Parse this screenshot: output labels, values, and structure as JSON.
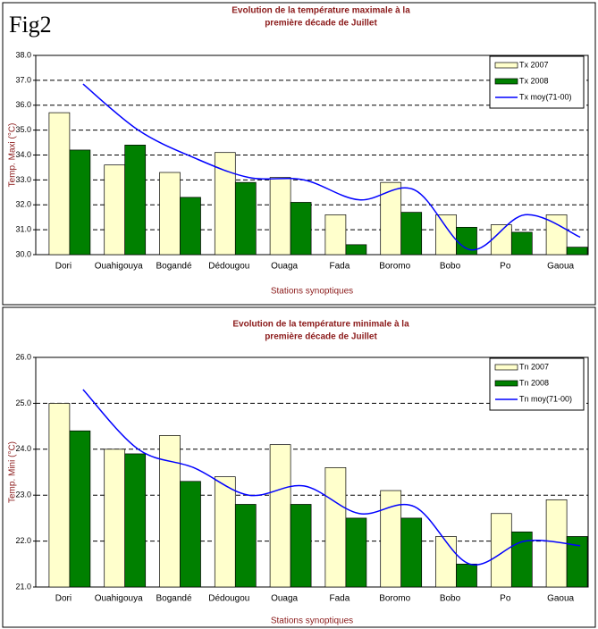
{
  "figure_label": "Fig2",
  "chart_data": [
    {
      "type": "bar",
      "title": [
        "Evolution de la température maximale à la",
        "première décade de Juillet"
      ],
      "x_label": "Stations synoptiques",
      "y_label": "Temp. Maxi (°C)",
      "categories": [
        "Dori",
        "Ouahigouya",
        "Bogandé",
        "Dédougou",
        "Ouaga",
        "Fada",
        "Boromo",
        "Bobo",
        "Po",
        "Gaoua"
      ],
      "series": [
        {
          "name": "Tx 2007",
          "type": "bar",
          "color": "#ffffcc",
          "values": [
            35.7,
            33.6,
            33.3,
            34.1,
            33.1,
            31.6,
            32.9,
            31.6,
            31.2,
            31.6
          ]
        },
        {
          "name": "Tx 2008",
          "type": "bar",
          "color": "#008000",
          "values": [
            34.2,
            34.4,
            32.3,
            32.9,
            32.1,
            30.4,
            31.7,
            31.1,
            30.9,
            30.3
          ]
        },
        {
          "name": "Tx moy(71-00)",
          "type": "line",
          "color": "#0000ff",
          "values": [
            36.85,
            35.0,
            33.9,
            33.1,
            33.0,
            32.2,
            32.6,
            30.2,
            31.6,
            30.7
          ]
        }
      ],
      "ylim": [
        30,
        38
      ],
      "yticks": [
        {
          "value": 30,
          "label": "30.0"
        },
        {
          "value": 31,
          "label": "31.0"
        },
        {
          "value": 32,
          "label": "32.0"
        },
        {
          "value": 33,
          "label": "33.0"
        },
        {
          "value": 34,
          "label": "34.0"
        },
        {
          "value": 35,
          "label": "35.0"
        },
        {
          "value": 36,
          "label": "36.0"
        },
        {
          "value": 37,
          "label": "37.0"
        },
        {
          "value": 38,
          "label": "38.0"
        }
      ],
      "grid": true,
      "legend": "upper right"
    },
    {
      "type": "bar",
      "title": [
        "Evolution de la température minimale à la",
        "première décade de Juillet"
      ],
      "x_label": "Stations synoptiques",
      "y_label": "Temp. Mini (°C)",
      "categories": [
        "Dori",
        "Ouahigouya",
        "Bogandé",
        "Dédougou",
        "Ouaga",
        "Fada",
        "Boromo",
        "Bobo",
        "Po",
        "Gaoua"
      ],
      "series": [
        {
          "name": "Tn 2007",
          "type": "bar",
          "color": "#ffffcc",
          "values": [
            25.0,
            24.0,
            24.3,
            23.4,
            24.1,
            23.6,
            23.1,
            22.1,
            22.6,
            22.9
          ]
        },
        {
          "name": "Tn 2008",
          "type": "bar",
          "color": "#008000",
          "values": [
            24.4,
            23.9,
            23.3,
            22.8,
            22.8,
            22.5,
            22.5,
            21.5,
            22.2,
            22.1
          ]
        },
        {
          "name": "Tn moy(71-00)",
          "type": "line",
          "color": "#0000ff",
          "values": [
            25.3,
            24.0,
            23.6,
            23.0,
            23.2,
            22.6,
            22.75,
            21.5,
            22.0,
            21.9
          ]
        }
      ],
      "ylim": [
        21,
        26
      ],
      "yticks": [
        {
          "value": 21,
          "label": "21.0"
        },
        {
          "value": 22,
          "label": "22.0"
        },
        {
          "value": 23,
          "label": "23.0"
        },
        {
          "value": 24,
          "label": "24.0"
        },
        {
          "value": 25,
          "label": "25.0"
        },
        {
          "value": 26,
          "label": "26.0"
        }
      ],
      "grid": true,
      "legend": "upper right"
    }
  ]
}
